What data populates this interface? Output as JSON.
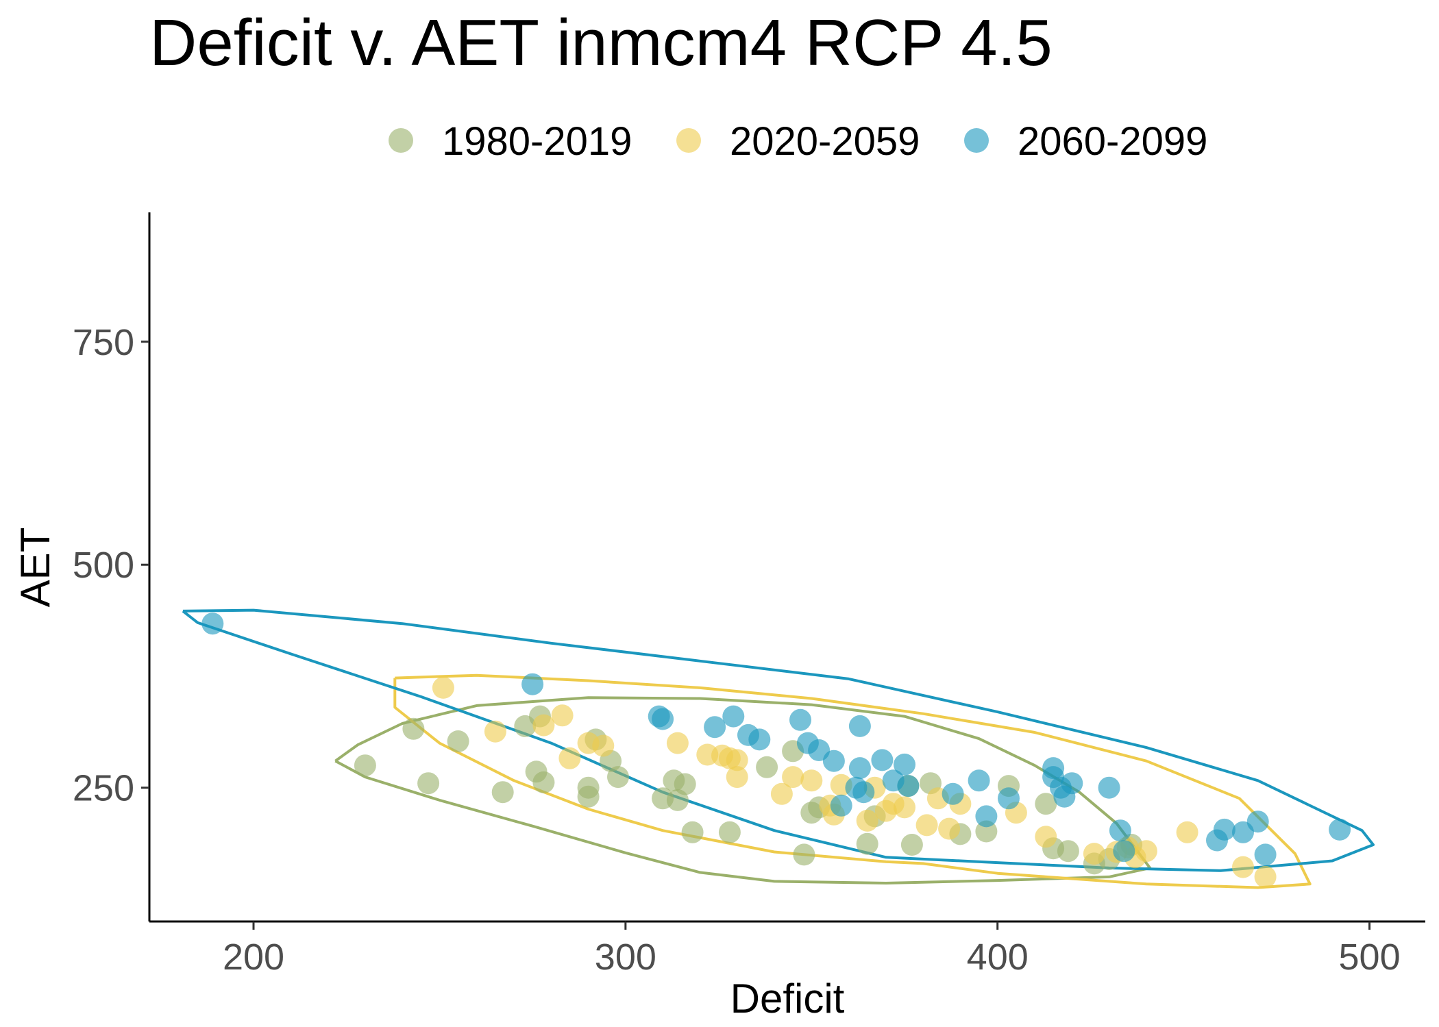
{
  "chart_data": {
    "type": "scatter",
    "title": "Deficit v. AET inmcm4 RCP 4.5",
    "xlabel": "Deficit",
    "ylabel": "AET",
    "xlim": [
      172,
      515
    ],
    "ylim": [
      100,
      895
    ],
    "x_ticks": [
      "200",
      "300",
      "400",
      "500"
    ],
    "y_ticks": [
      "250",
      "500",
      "750"
    ],
    "grid": false,
    "legend_position": "top",
    "series": [
      {
        "name": "1980-2019",
        "color": "#9AB06A",
        "points": [
          [
            230,
            275
          ],
          [
            243,
            316
          ],
          [
            247,
            255
          ],
          [
            255,
            302
          ],
          [
            267,
            245
          ],
          [
            273,
            319
          ],
          [
            276,
            268
          ],
          [
            277,
            330
          ],
          [
            278,
            256
          ],
          [
            290,
            250
          ],
          [
            290,
            240
          ],
          [
            292,
            304
          ],
          [
            296,
            280
          ],
          [
            298,
            262
          ],
          [
            310,
            238
          ],
          [
            313,
            258
          ],
          [
            314,
            236
          ],
          [
            316,
            254
          ],
          [
            318,
            200
          ],
          [
            328,
            200
          ],
          [
            338,
            273
          ],
          [
            345,
            291
          ],
          [
            348,
            175
          ],
          [
            350,
            222
          ],
          [
            352,
            228
          ],
          [
            365,
            187
          ],
          [
            367,
            218
          ],
          [
            376,
            252
          ],
          [
            377,
            186
          ],
          [
            382,
            255
          ],
          [
            390,
            198
          ],
          [
            397,
            201
          ],
          [
            403,
            252
          ],
          [
            413,
            232
          ],
          [
            415,
            182
          ],
          [
            419,
            179
          ],
          [
            426,
            165
          ],
          [
            430,
            170
          ],
          [
            436,
            186
          ]
        ],
        "ellipse": [
          [
            222,
            280
          ],
          [
            228,
            298
          ],
          [
            240,
            322
          ],
          [
            260,
            342
          ],
          [
            290,
            351
          ],
          [
            320,
            350
          ],
          [
            350,
            343
          ],
          [
            375,
            330
          ],
          [
            395,
            305
          ],
          [
            410,
            275
          ],
          [
            422,
            245
          ],
          [
            432,
            210
          ],
          [
            441,
            160
          ],
          [
            430,
            150
          ],
          [
            400,
            146
          ],
          [
            370,
            143
          ],
          [
            340,
            145
          ],
          [
            320,
            155
          ],
          [
            300,
            177
          ],
          [
            275,
            207
          ],
          [
            250,
            236
          ],
          [
            230,
            262
          ],
          [
            222,
            280
          ]
        ]
      },
      {
        "name": "2020-2059",
        "color": "#EECB4C",
        "points": [
          [
            251,
            362
          ],
          [
            265,
            313
          ],
          [
            278,
            320
          ],
          [
            283,
            331
          ],
          [
            285,
            283
          ],
          [
            290,
            300
          ],
          [
            294,
            297
          ],
          [
            314,
            300
          ],
          [
            322,
            287
          ],
          [
            326,
            286
          ],
          [
            328,
            283
          ],
          [
            330,
            281
          ],
          [
            330,
            262
          ],
          [
            342,
            243
          ],
          [
            345,
            262
          ],
          [
            350,
            258
          ],
          [
            355,
            230
          ],
          [
            356,
            220
          ],
          [
            358,
            253
          ],
          [
            365,
            213
          ],
          [
            367,
            250
          ],
          [
            370,
            224
          ],
          [
            372,
            232
          ],
          [
            375,
            228
          ],
          [
            381,
            208
          ],
          [
            384,
            238
          ],
          [
            387,
            204
          ],
          [
            390,
            232
          ],
          [
            405,
            222
          ],
          [
            413,
            195
          ],
          [
            426,
            176
          ],
          [
            432,
            178
          ],
          [
            435,
            183
          ],
          [
            437,
            172
          ],
          [
            440,
            179
          ],
          [
            451,
            200
          ],
          [
            466,
            161
          ],
          [
            472,
            150
          ]
        ],
        "ellipse": [
          [
            238,
            373
          ],
          [
            260,
            376
          ],
          [
            290,
            370
          ],
          [
            320,
            362
          ],
          [
            350,
            350
          ],
          [
            380,
            333
          ],
          [
            410,
            312
          ],
          [
            440,
            280
          ],
          [
            465,
            238
          ],
          [
            480,
            176
          ],
          [
            484,
            142
          ],
          [
            470,
            138
          ],
          [
            440,
            142
          ],
          [
            400,
            154
          ],
          [
            380,
            165
          ],
          [
            370,
            167
          ],
          [
            340,
            178
          ],
          [
            310,
            202
          ],
          [
            290,
            226
          ],
          [
            270,
            258
          ],
          [
            250,
            300
          ],
          [
            238,
            340
          ],
          [
            238,
            373
          ]
        ]
      },
      {
        "name": "2060-2099",
        "color": "#1B97BE",
        "points": [
          [
            189,
            434
          ],
          [
            275,
            366
          ],
          [
            309,
            330
          ],
          [
            310,
            327
          ],
          [
            324,
            318
          ],
          [
            329,
            330
          ],
          [
            333,
            309
          ],
          [
            336,
            304
          ],
          [
            347,
            326
          ],
          [
            349,
            300
          ],
          [
            352,
            292
          ],
          [
            356,
            280
          ],
          [
            358,
            230
          ],
          [
            362,
            250
          ],
          [
            363,
            319
          ],
          [
            363,
            272
          ],
          [
            364,
            245
          ],
          [
            369,
            281
          ],
          [
            372,
            258
          ],
          [
            375,
            276
          ],
          [
            376,
            252
          ],
          [
            388,
            243
          ],
          [
            395,
            258
          ],
          [
            397,
            218
          ],
          [
            403,
            238
          ],
          [
            415,
            272
          ],
          [
            415,
            262
          ],
          [
            417,
            250
          ],
          [
            418,
            240
          ],
          [
            420,
            255
          ],
          [
            430,
            250
          ],
          [
            433,
            202
          ],
          [
            434,
            179
          ],
          [
            459,
            191
          ],
          [
            461,
            203
          ],
          [
            466,
            200
          ],
          [
            470,
            212
          ],
          [
            472,
            175
          ],
          [
            492,
            203
          ]
        ],
        "ellipse": [
          [
            181,
            448
          ],
          [
            200,
            449
          ],
          [
            240,
            434
          ],
          [
            280,
            412
          ],
          [
            320,
            392
          ],
          [
            360,
            372
          ],
          [
            400,
            335
          ],
          [
            440,
            295
          ],
          [
            470,
            258
          ],
          [
            498,
            202
          ],
          [
            501,
            186
          ],
          [
            490,
            168
          ],
          [
            460,
            157
          ],
          [
            430,
            160
          ],
          [
            400,
            166
          ],
          [
            370,
            172
          ],
          [
            340,
            202
          ],
          [
            310,
            245
          ],
          [
            280,
            300
          ],
          [
            245,
            352
          ],
          [
            210,
            400
          ],
          [
            185,
            435
          ],
          [
            181,
            448
          ]
        ]
      }
    ]
  }
}
